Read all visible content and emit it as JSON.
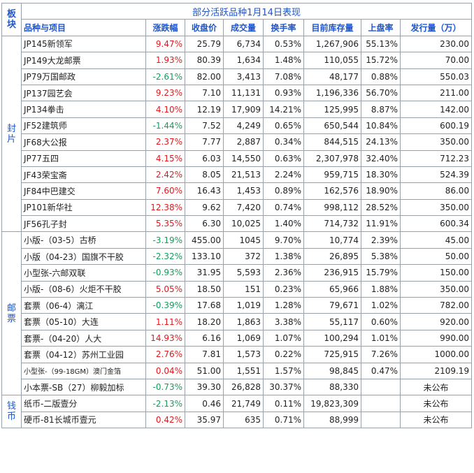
{
  "title": "部分活跃品种1月14日表现",
  "header": {
    "section": "板块",
    "columns": [
      "品种与项目",
      "涨跌幅",
      "收盘价",
      "成交量",
      "换手率",
      "目前库存量",
      "上盘率",
      "发行量（万）"
    ]
  },
  "colors": {
    "up": "#e0191d",
    "down": "#11a05a",
    "header": "#1f55c8"
  },
  "sections": [
    {
      "label": "封片",
      "rows": [
        {
          "name": "JP145新领军",
          "change": "9.47%",
          "dir": "up",
          "close": "25.79",
          "volume": "6,734",
          "turnover": "0.53%",
          "stock": "1,267,906",
          "listing": "55.13%",
          "issue": "230.00"
        },
        {
          "name": "JP149大龙邮票",
          "change": "1.93%",
          "dir": "up",
          "close": "80.39",
          "volume": "1,634",
          "turnover": "1.48%",
          "stock": "110,055",
          "listing": "15.72%",
          "issue": "70.00"
        },
        {
          "name": "JP79万国邮政",
          "change": "-2.61%",
          "dir": "down",
          "close": "82.00",
          "volume": "3,413",
          "turnover": "7.08%",
          "stock": "48,177",
          "listing": "0.88%",
          "issue": "550.03"
        },
        {
          "name": "JP137园艺会",
          "change": "9.23%",
          "dir": "up",
          "close": "7.10",
          "volume": "11,131",
          "turnover": "0.93%",
          "stock": "1,196,336",
          "listing": "56.70%",
          "issue": "211.00"
        },
        {
          "name": "JP134拳击",
          "change": "4.10%",
          "dir": "up",
          "close": "12.19",
          "volume": "17,909",
          "turnover": "14.21%",
          "stock": "125,995",
          "listing": "8.87%",
          "issue": "142.00"
        },
        {
          "name": "JF52建筑师",
          "change": "-1.44%",
          "dir": "down",
          "close": "7.52",
          "volume": "4,249",
          "turnover": "0.65%",
          "stock": "650,544",
          "listing": "10.84%",
          "issue": "600.19"
        },
        {
          "name": "JF68大公报",
          "change": "2.37%",
          "dir": "up",
          "close": "7.77",
          "volume": "2,887",
          "turnover": "0.34%",
          "stock": "844,515",
          "listing": "24.13%",
          "issue": "350.00"
        },
        {
          "name": "JP77五四",
          "change": "4.15%",
          "dir": "up",
          "close": "6.03",
          "volume": "14,550",
          "turnover": "0.63%",
          "stock": "2,307,978",
          "listing": "32.40%",
          "issue": "712.23"
        },
        {
          "name": "JF43荣宝斋",
          "change": "2.42%",
          "dir": "up",
          "close": "8.05",
          "volume": "21,513",
          "turnover": "2.24%",
          "stock": "959,715",
          "listing": "18.30%",
          "issue": "524.39"
        },
        {
          "name": "JF84中巴建交",
          "change": "7.60%",
          "dir": "up",
          "close": "16.43",
          "volume": "1,453",
          "turnover": "0.89%",
          "stock": "162,576",
          "listing": "18.90%",
          "issue": "86.00"
        },
        {
          "name": "JP101新华社",
          "change": "12.38%",
          "dir": "up",
          "close": "9.62",
          "volume": "7,420",
          "turnover": "0.74%",
          "stock": "998,112",
          "listing": "28.52%",
          "issue": "350.00"
        },
        {
          "name": "JF56孔子封",
          "change": "5.35%",
          "dir": "up",
          "close": "6.30",
          "volume": "10,025",
          "turnover": "1.40%",
          "stock": "714,732",
          "listing": "11.91%",
          "issue": "600.34"
        }
      ]
    },
    {
      "label": "邮票",
      "rows": [
        {
          "name": "小版-（03-5）古桥",
          "change": "-3.19%",
          "dir": "down",
          "close": "455.00",
          "volume": "1045",
          "turnover": "9.70%",
          "stock": "10,774",
          "listing": "2.39%",
          "issue": "45.00"
        },
        {
          "name": "小版（04-23）国旗不干胶",
          "change": "-2.32%",
          "dir": "down",
          "close": "133.10",
          "volume": "372",
          "turnover": "1.38%",
          "stock": "26,895",
          "listing": "5.38%",
          "issue": "50.00"
        },
        {
          "name": "小型张-六邮双联",
          "change": "-0.93%",
          "dir": "down",
          "close": "31.95",
          "volume": "5,593",
          "turnover": "2.36%",
          "stock": "236,915",
          "listing": "15.79%",
          "issue": "150.00"
        },
        {
          "name": "小版-（08-6）火炬不干胶",
          "change": "5.05%",
          "dir": "up",
          "close": "18.50",
          "volume": "151",
          "turnover": "0.23%",
          "stock": "65,966",
          "listing": "1.88%",
          "issue": "350.00"
        },
        {
          "name": "套票（06-4）漓江",
          "change": "-0.39%",
          "dir": "down",
          "close": "17.68",
          "volume": "1,019",
          "turnover": "1.28%",
          "stock": "79,671",
          "listing": "1.02%",
          "issue": "782.00"
        },
        {
          "name": "套票（05-10）大连",
          "change": "1.11%",
          "dir": "up",
          "close": "18.20",
          "volume": "1,863",
          "turnover": "3.38%",
          "stock": "55,117",
          "listing": "0.60%",
          "issue": "920.00"
        },
        {
          "name": "套票-（04-20）人大",
          "change": "14.93%",
          "dir": "up",
          "close": "6.16",
          "volume": "1,069",
          "turnover": "1.07%",
          "stock": "100,294",
          "listing": "1.01%",
          "issue": "990.00"
        },
        {
          "name": "套票（04-12）苏州工业园",
          "change": "2.76%",
          "dir": "up",
          "close": "7.81",
          "volume": "1,573",
          "turnover": "0.22%",
          "stock": "725,915",
          "listing": "7.26%",
          "issue": "1000.00"
        },
        {
          "name": "小型张-（99-18GM）澳门金箔",
          "change": "0.04%",
          "dir": "up",
          "close": "51.00",
          "volume": "1,551",
          "turnover": "1.57%",
          "stock": "98,845",
          "listing": "0.47%",
          "issue": "2109.19",
          "small": true
        },
        {
          "name": "小本票-SB（27）柳毅加标",
          "change": "-0.73%",
          "dir": "down",
          "close": "39.30",
          "volume": "26,828",
          "turnover": "30.37%",
          "stock": "88,330",
          "listing": "",
          "issue": "未公布"
        }
      ]
    },
    {
      "label": "钱币",
      "rows": [
        {
          "name": "纸币-二版壹分",
          "change": "-2.13%",
          "dir": "down",
          "close": "0.46",
          "volume": "21,749",
          "turnover": "0.11%",
          "stock": "19,823,309",
          "listing": "",
          "issue": "未公布"
        },
        {
          "name": "硬币-81长城币壹元",
          "change": "0.42%",
          "dir": "up",
          "close": "35.97",
          "volume": "635",
          "turnover": "0.71%",
          "stock": "88,999",
          "listing": "",
          "issue": "未公布"
        }
      ]
    }
  ]
}
